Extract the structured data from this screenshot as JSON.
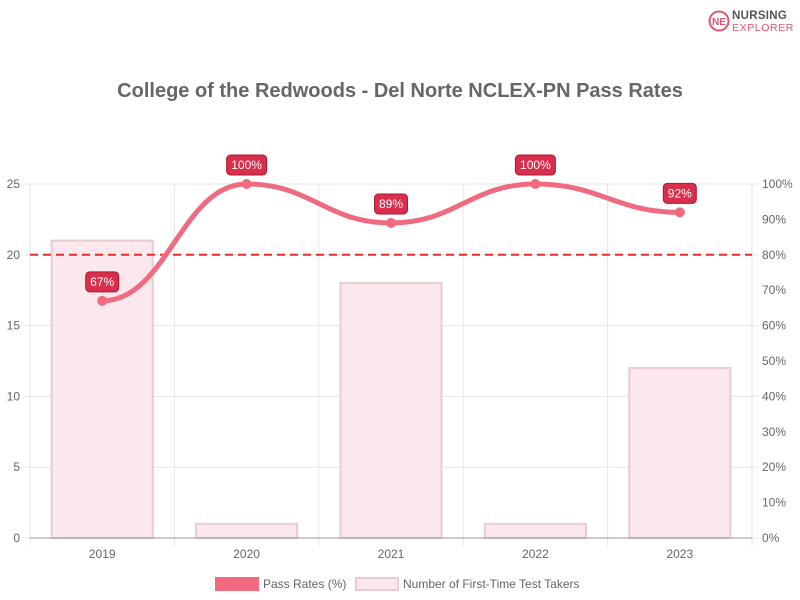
{
  "logo": {
    "line1": "NURSING",
    "line2": "EXPLORER",
    "mark": "NE"
  },
  "colors": {
    "line": "#f06b80",
    "bar_fill": "#fbe8ec",
    "bar_stroke": "#e8ccd2",
    "label_bg": "#d92f4c",
    "label_border": "#a51b33",
    "reference": "#e52b2b",
    "grid": "#e6e6e6",
    "axis_text": "#666666"
  },
  "chart_data": {
    "type": "bar",
    "title": "College of the Redwoods - Del Norte NCLEX-PN Pass Rates",
    "categories": [
      "2019",
      "2020",
      "2021",
      "2022",
      "2023"
    ],
    "series": [
      {
        "name": "Pass Rates (%)",
        "type": "line",
        "axis": "right",
        "values": [
          67,
          100,
          89,
          100,
          92
        ],
        "labels": [
          "67%",
          "100%",
          "89%",
          "100%",
          "92%"
        ]
      },
      {
        "name": "Number of First-Time Test Takers",
        "type": "bar",
        "axis": "left",
        "values": [
          21,
          1,
          18,
          1,
          12
        ]
      }
    ],
    "left_axis": {
      "ylim": [
        0,
        25
      ],
      "ticks": [
        "0",
        "5",
        "10",
        "15",
        "20",
        "25"
      ]
    },
    "right_axis": {
      "ylim": [
        0,
        100
      ],
      "ticks": [
        "0%",
        "10%",
        "20%",
        "30%",
        "40%",
        "50%",
        "60%",
        "70%",
        "80%",
        "90%",
        "100%"
      ]
    },
    "reference_line": {
      "axis": "right",
      "value": 80,
      "style": "dashed"
    },
    "grid": true,
    "legend_position": "bottom"
  }
}
